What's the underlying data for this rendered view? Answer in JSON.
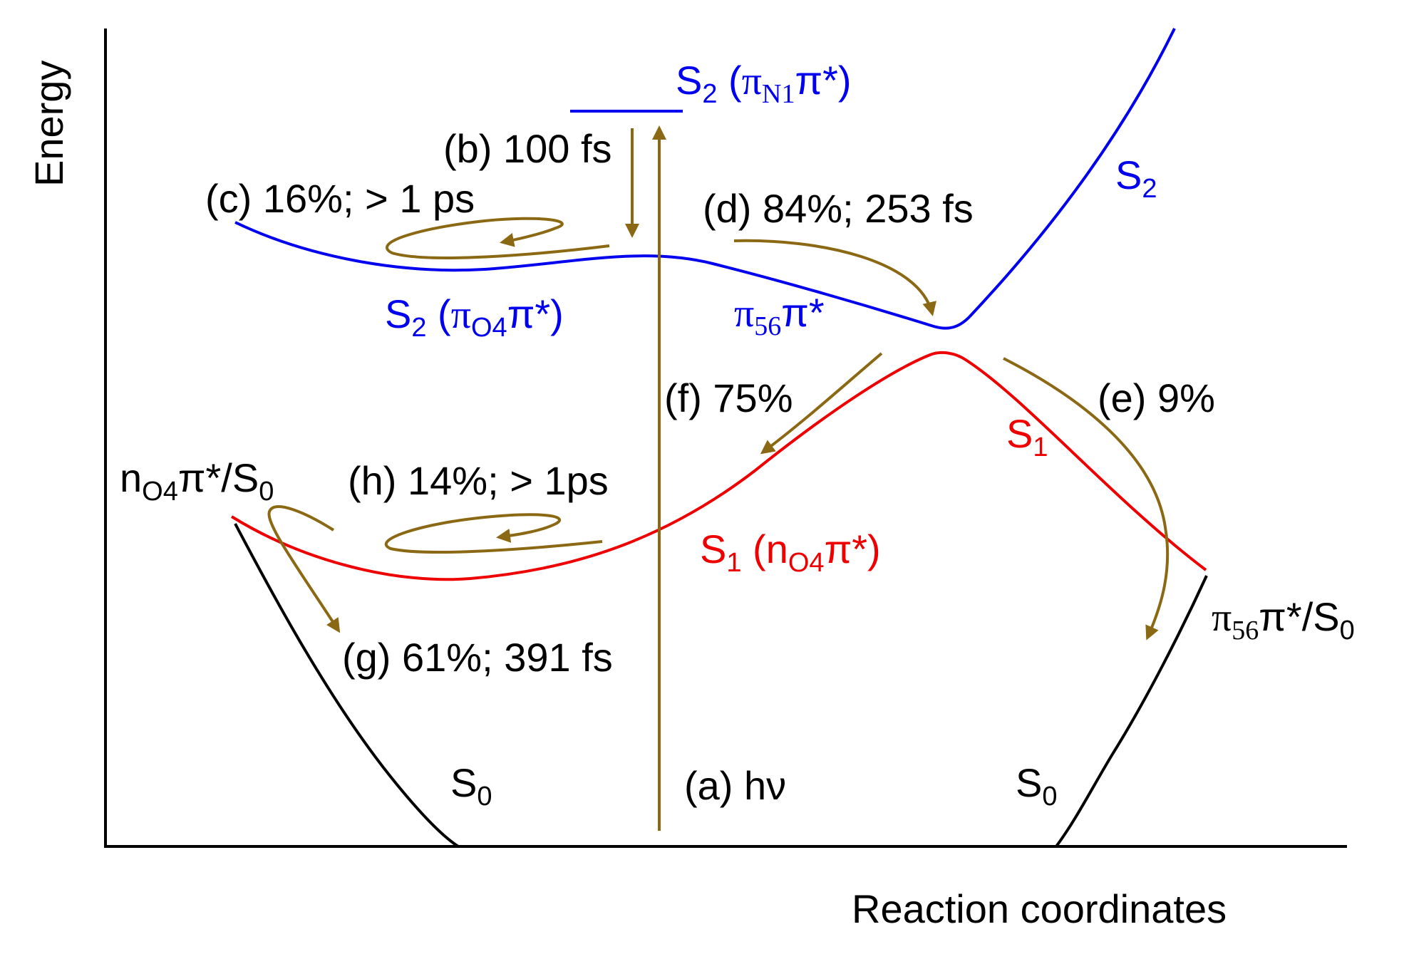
{
  "axes": {
    "ylabel": "Energy",
    "xlabel": "Reaction coordinates"
  },
  "colors": {
    "s2": "#0000ee",
    "s1": "#ee0000",
    "s0": "#000000",
    "arrow": "#8b6914",
    "axis": "#000000"
  },
  "labels": {
    "s2_top": {
      "main": "S",
      "sub": "2",
      "open": " (",
      "greek": "π",
      "greek_sub": "N1",
      "greek2": "π*)"
    },
    "s2_right": {
      "main": "S",
      "sub": "2"
    },
    "s2_pi_o4": {
      "main": "S",
      "sub": "2",
      "open": " (",
      "greek": "π",
      "greek_sub": "O4",
      "greek2": "π*)"
    },
    "pi56_upper": {
      "greek": "π",
      "greek_sub": "56",
      "greek2": "π*"
    },
    "s1_right": {
      "main": "S",
      "sub": "1"
    },
    "s1_n_o4": {
      "main": "S",
      "sub": "1",
      "open": " (n",
      "greek_sub": "O4",
      "greek2": "π*)"
    },
    "n_o4_s0": {
      "main": "n",
      "sub": "O4",
      "rest": "π*/S",
      "sub2": "0"
    },
    "pi56_s0": {
      "greek": "π",
      "greek_sub": "56",
      "rest": "π*/S",
      "sub2": "0"
    },
    "s0_left": {
      "main": "S",
      "sub": "0"
    },
    "s0_right": {
      "main": "S",
      "sub": "0"
    }
  },
  "processes": {
    "a": "(a) hν",
    "b": "(b) 100 fs",
    "c": "(c) 16%; > 1 ps",
    "d": "(d) 84%; 253 fs",
    "e": "(e) 9%",
    "f": "(f) 75%",
    "g": "(g) 61%; 391 fs",
    "h": "(h) 14%; > 1ps"
  }
}
